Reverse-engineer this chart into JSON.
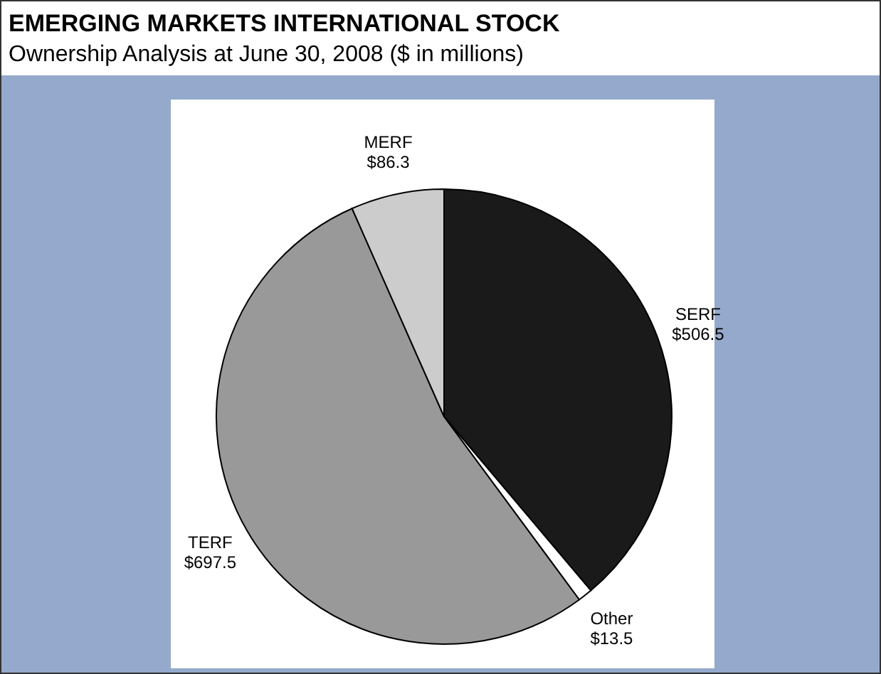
{
  "chart_data": {
    "type": "pie",
    "title": "EMERGING MARKETS INTERNATIONAL STOCK",
    "subtitle": "Ownership Analysis at June 30, 2008 ($ in millions)",
    "categories": [
      "SERF",
      "Other",
      "TERF",
      "MERF"
    ],
    "values": [
      506.5,
      13.5,
      697.5,
      86.3
    ],
    "value_labels": [
      "$506.5",
      "$13.5",
      "$697.5",
      "$86.3"
    ],
    "colors": [
      "#1a1a1a",
      "#ffffff",
      "#999999",
      "#cccccc"
    ]
  }
}
